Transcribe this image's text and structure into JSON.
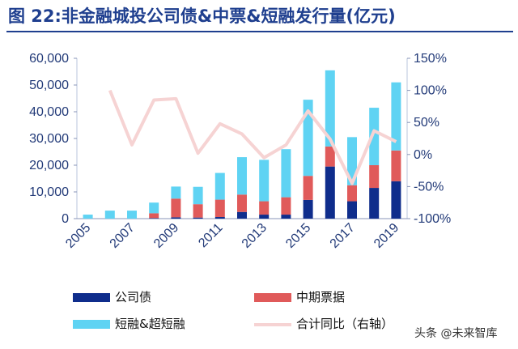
{
  "title": "图 22:非金融城投公司债&中票&短融发行量(亿元)",
  "watermark": "头条 @未来智库",
  "colors": {
    "corporate_bond": "#0f2d8c",
    "mtn": "#e05a5a",
    "short_term": "#5fd3f3",
    "growth_line": "#f6d3d3",
    "axis": "#223a78",
    "title": "#1f3f8f"
  },
  "chart_data": {
    "type": "bar",
    "stacked": true,
    "categories": [
      "2005",
      "2006",
      "2007",
      "2008",
      "2009",
      "2010",
      "2011",
      "2012",
      "2013",
      "2014",
      "2015",
      "2016",
      "2017",
      "2018",
      "2019"
    ],
    "x_tick_labels": [
      "2005",
      "2007",
      "2009",
      "2011",
      "2013",
      "2015",
      "2017",
      "2019"
    ],
    "series": [
      {
        "name": "公司债",
        "axis": "left",
        "values": [
          0,
          0,
          0,
          200,
          500,
          400,
          600,
          2500,
          1500,
          1500,
          7000,
          19500,
          6500,
          11500,
          14000
        ]
      },
      {
        "name": "中期票据",
        "axis": "left",
        "values": [
          0,
          0,
          0,
          1800,
          7000,
          5000,
          6500,
          6500,
          5000,
          6500,
          9000,
          7500,
          6000,
          8500,
          11500
        ]
      },
      {
        "name": "短融&超短融",
        "axis": "left",
        "values": [
          1500,
          3000,
          3000,
          4000,
          4500,
          6500,
          10000,
          14000,
          15500,
          18000,
          28500,
          28500,
          18000,
          21500,
          25500
        ]
      },
      {
        "name": "合计同比（右轴）",
        "axis": "right",
        "type": "line",
        "values": [
          null,
          100,
          15,
          85,
          87,
          2,
          48,
          32,
          -5,
          15,
          68,
          24,
          -45,
          37,
          20
        ]
      }
    ],
    "y_left": {
      "min": 0,
      "max": 60000,
      "ticks": [
        "0",
        "10,000",
        "20,000",
        "30,000",
        "40,000",
        "50,000",
        "60,000"
      ]
    },
    "y_right": {
      "min": -100,
      "max": 150,
      "ticks": [
        "-100%",
        "-50%",
        "0%",
        "50%",
        "100%",
        "150%"
      ]
    },
    "legend_position": "bottom"
  },
  "legend": [
    {
      "label": "公司债",
      "kind": "bar",
      "color": "#0f2d8c"
    },
    {
      "label": "中期票据",
      "kind": "bar",
      "color": "#e05a5a"
    },
    {
      "label": "短融&超短融",
      "kind": "bar",
      "color": "#5fd3f3"
    },
    {
      "label": "合计同比（右轴）",
      "kind": "line",
      "color": "#f6d3d3"
    }
  ]
}
